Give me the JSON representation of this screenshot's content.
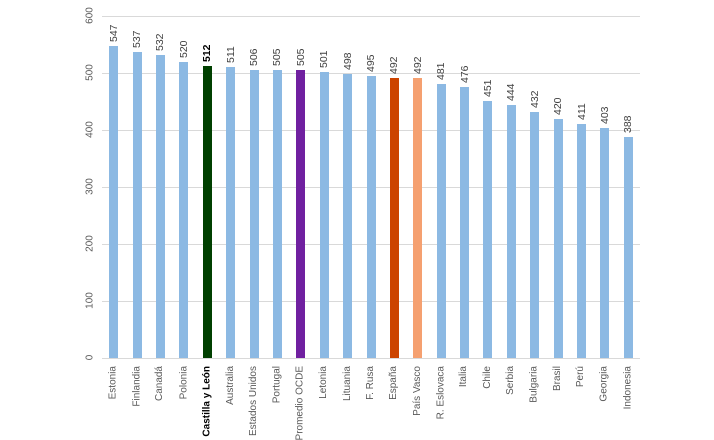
{
  "chart_data": {
    "type": "bar",
    "title": "",
    "xlabel": "",
    "ylabel": "",
    "ylim": [
      0,
      600
    ],
    "yticks": [
      0,
      100,
      200,
      300,
      400,
      500,
      600
    ],
    "grid": true,
    "legend": null,
    "categories": [
      "Estonia",
      "Finlandia",
      "Canadá",
      "Polonia",
      "Castilla y León",
      "Australia",
      "Estados Unidos",
      "Portugal",
      "Promedio OCDE",
      "Letonia",
      "Lituania",
      "F. Rusa",
      "España",
      "País Vasco",
      "R. Eslovaca",
      "Italia",
      "Chile",
      "Serbia",
      "Bulgaria",
      "Brasil",
      "Perú",
      "Georgia",
      "Indonesia"
    ],
    "values": [
      547,
      537,
      532,
      520,
      512,
      511,
      506,
      505,
      505,
      501,
      498,
      495,
      492,
      492,
      481,
      476,
      451,
      444,
      432,
      420,
      411,
      403,
      388
    ],
    "colors": {
      "default": "#8cb9e3",
      "Castilla y León": "#004000",
      "Promedio OCDE": "#7020a0",
      "España": "#cc4400",
      "País Vasco": "#f5a070"
    },
    "highlighted": [
      "Castilla y León"
    ]
  }
}
